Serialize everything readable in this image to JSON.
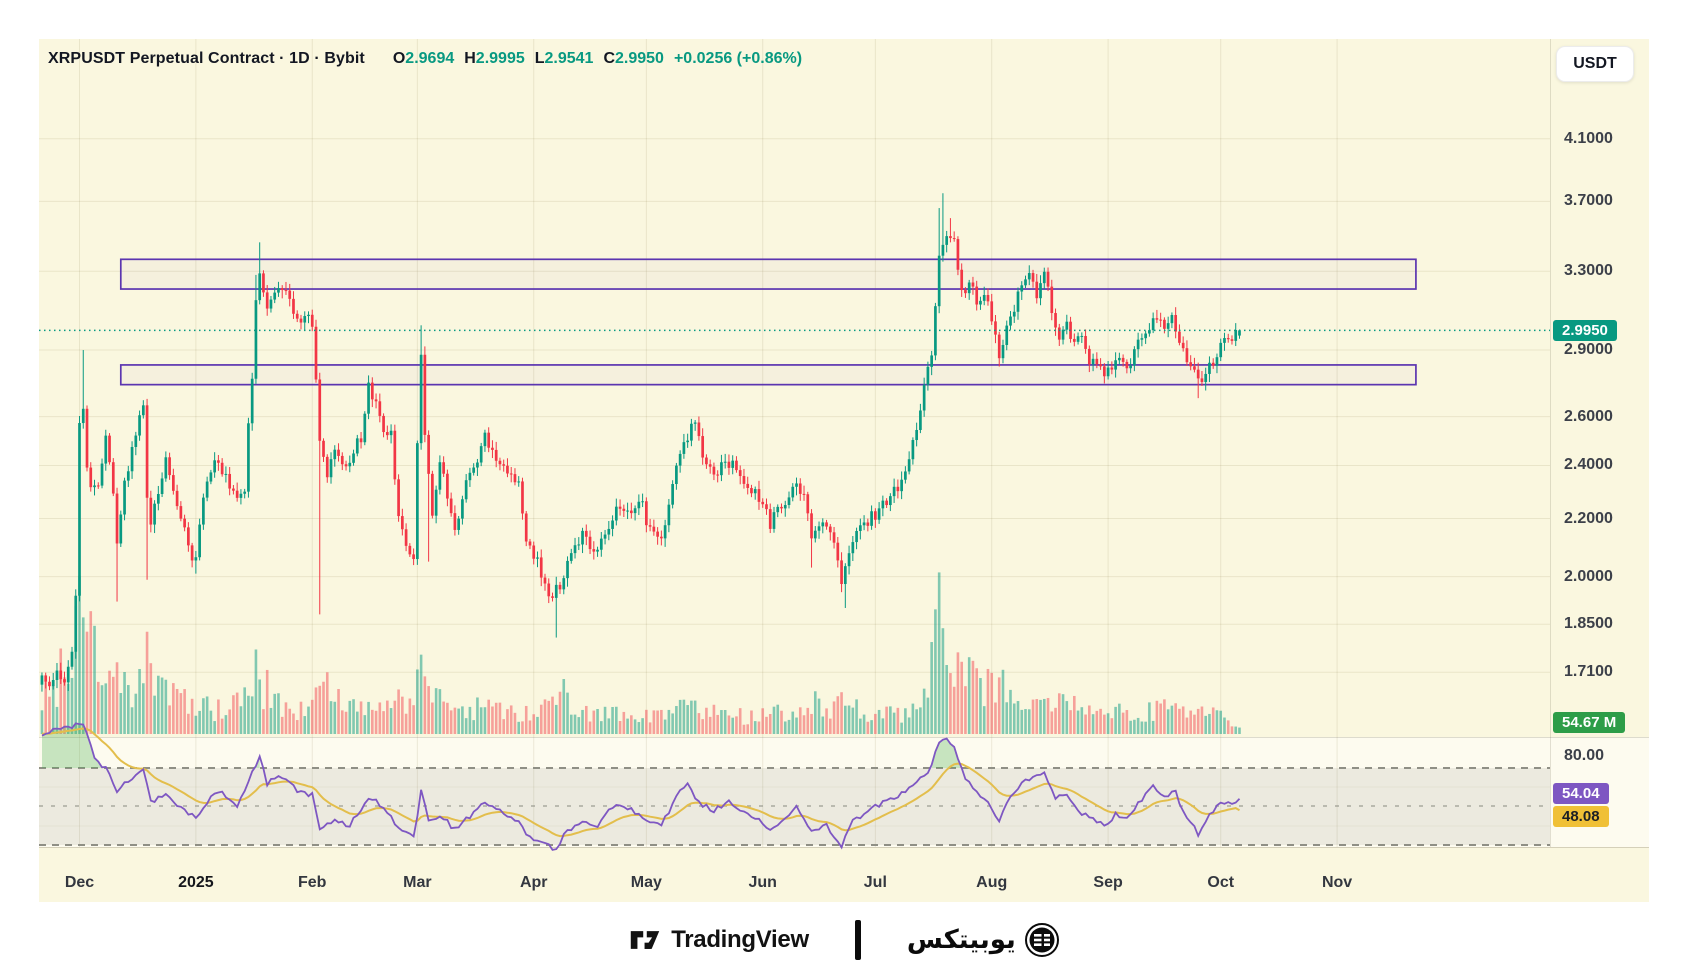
{
  "header": {
    "title": "XRPUSDT Perpetual Contract · 1D · Bybit",
    "ohlc": [
      {
        "label": "O",
        "value": "2.9694"
      },
      {
        "label": "H",
        "value": "2.9995"
      },
      {
        "label": "L",
        "value": "2.9541"
      },
      {
        "label": "C",
        "value": "2.9950"
      }
    ],
    "change": "+0.0256 (+0.86%)",
    "currency_button": "USDT"
  },
  "price_axis": {
    "ticks": [
      "4.1000",
      "3.7000",
      "3.3000",
      "2.9000",
      "2.6000",
      "2.4000",
      "2.2000",
      "2.0000",
      "1.8500",
      "1.7100"
    ],
    "last_price_badge": "2.9950",
    "volume_badge": "54.67 M"
  },
  "rsi_axis": {
    "top_label": "80.00",
    "rsi_badge": "54.04",
    "ma_badge": "48.08"
  },
  "time_axis": {
    "labels": [
      {
        "text": "Dec",
        "day": 10
      },
      {
        "text": "2025",
        "day": 41,
        "bold": true
      },
      {
        "text": "Feb",
        "day": 72
      },
      {
        "text": "Mar",
        "day": 100
      },
      {
        "text": "Apr",
        "day": 131
      },
      {
        "text": "May",
        "day": 161
      },
      {
        "text": "Jun",
        "day": 192
      },
      {
        "text": "Jul",
        "day": 222
      },
      {
        "text": "Aug",
        "day": 253
      },
      {
        "text": "Sep",
        "day": 284
      },
      {
        "text": "Oct",
        "day": 314
      },
      {
        "text": "Nov",
        "day": 345
      }
    ]
  },
  "footer": {
    "tradingview": "TradingView",
    "partner": "يوبيتكس"
  },
  "colors": {
    "up": "#089981",
    "down": "#F23645",
    "vol_up": "rgba(8,153,129,0.50)",
    "vol_down": "rgba(242,54,69,0.45)",
    "accent": "#089981",
    "rsi_purple": "#7E57C2",
    "rsi_ma_yellow": "#E3BE4C",
    "rsi_overbought_fill": "rgba(76,175,80,0.30)",
    "zone_purple": "#5B35B0",
    "zone_fill": "rgba(103,58,183,0.035)",
    "price_badge_bg": "#089981",
    "volume_badge_bg": "#2D9D48",
    "rsi_badge_bg": "#7E57C2",
    "rsi_ma_badge_bg": "#F0C036",
    "grid": "rgba(120,110,55,0.13)",
    "dashed": "#8f8f85",
    "band_fill": "rgba(137,134,124,0.14)",
    "panel_bg": "#FAF7DF"
  },
  "chart_data": {
    "type": "candlestick+volume+rsi",
    "symbol": "XRPUSDT",
    "contract": "Perpetual Contract",
    "interval": "1D",
    "exchange": "Bybit",
    "scale": "logarithmic",
    "start_date": "2024-11-21",
    "end_date": "2025-10-06",
    "num_days": 320,
    "price_ticks": [
      4.1,
      3.7,
      3.3,
      2.9,
      2.6,
      2.4,
      2.2,
      2.0,
      1.85,
      1.71
    ],
    "current_price": 2.995,
    "last_candle": {
      "open": 2.9694,
      "high": 2.9995,
      "low": 2.9541,
      "close": 2.995
    },
    "last_volume_m": 54.67,
    "rsi_last": 54.04,
    "rsi_ma_last": 48.08,
    "rsi_bands": {
      "upper": 70,
      "middle": 50,
      "lower": 30,
      "top_label": 80
    },
    "zones": [
      {
        "name": "supply-zone",
        "price_top": 3.365,
        "price_bottom": 3.205,
        "day_from": 21,
        "day_to": 366
      },
      {
        "name": "demand-zone",
        "price_top": 2.83,
        "price_bottom": 2.74,
        "day_from": 21,
        "day_to": 366
      }
    ],
    "price_anchors": [
      [
        0,
        1.72
      ],
      [
        2,
        1.66
      ],
      [
        4,
        1.7
      ],
      [
        6,
        1.68
      ],
      [
        8,
        1.78
      ],
      [
        9,
        1.95
      ],
      [
        10,
        2.6
      ],
      [
        11,
        2.62
      ],
      [
        12,
        2.4
      ],
      [
        13,
        2.32
      ],
      [
        15,
        2.3
      ],
      [
        17,
        2.52
      ],
      [
        19,
        2.28
      ],
      [
        20,
        2.1
      ],
      [
        22,
        2.35
      ],
      [
        24,
        2.45
      ],
      [
        26,
        2.6
      ],
      [
        27,
        2.67
      ],
      [
        28,
        2.28
      ],
      [
        29,
        2.18
      ],
      [
        31,
        2.3
      ],
      [
        33,
        2.42
      ],
      [
        35,
        2.32
      ],
      [
        37,
        2.22
      ],
      [
        39,
        2.1
      ],
      [
        41,
        2.05
      ],
      [
        43,
        2.28
      ],
      [
        46,
        2.42
      ],
      [
        49,
        2.35
      ],
      [
        52,
        2.28
      ],
      [
        54,
        2.32
      ],
      [
        55,
        2.55
      ],
      [
        56,
        2.78
      ],
      [
        57,
        3.12
      ],
      [
        58,
        3.29
      ],
      [
        60,
        3.08
      ],
      [
        62,
        3.18
      ],
      [
        64,
        3.22
      ],
      [
        66,
        3.12
      ],
      [
        68,
        3.05
      ],
      [
        70,
        3.08
      ],
      [
        72,
        3.04
      ],
      [
        74,
        2.48
      ],
      [
        76,
        2.36
      ],
      [
        78,
        2.46
      ],
      [
        80,
        2.38
      ],
      [
        83,
        2.45
      ],
      [
        85,
        2.52
      ],
      [
        87,
        2.72
      ],
      [
        89,
        2.66
      ],
      [
        91,
        2.55
      ],
      [
        93,
        2.52
      ],
      [
        95,
        2.22
      ],
      [
        97,
        2.12
      ],
      [
        99,
        2.05
      ],
      [
        101,
        2.9
      ],
      [
        102,
        2.52
      ],
      [
        104,
        2.2
      ],
      [
        106,
        2.42
      ],
      [
        108,
        2.28
      ],
      [
        110,
        2.15
      ],
      [
        113,
        2.34
      ],
      [
        116,
        2.42
      ],
      [
        118,
        2.52
      ],
      [
        121,
        2.44
      ],
      [
        124,
        2.38
      ],
      [
        127,
        2.34
      ],
      [
        129,
        2.12
      ],
      [
        132,
        2.05
      ],
      [
        134,
        1.96
      ],
      [
        136,
        1.92
      ],
      [
        137,
        1.96
      ],
      [
        139,
        2.0
      ],
      [
        141,
        2.1
      ],
      [
        144,
        2.14
      ],
      [
        147,
        2.08
      ],
      [
        150,
        2.12
      ],
      [
        153,
        2.26
      ],
      [
        156,
        2.22
      ],
      [
        159,
        2.28
      ],
      [
        161,
        2.2
      ],
      [
        164,
        2.12
      ],
      [
        166,
        2.18
      ],
      [
        169,
        2.38
      ],
      [
        172,
        2.52
      ],
      [
        174,
        2.6
      ],
      [
        176,
        2.42
      ],
      [
        179,
        2.36
      ],
      [
        182,
        2.42
      ],
      [
        185,
        2.38
      ],
      [
        188,
        2.3
      ],
      [
        191,
        2.28
      ],
      [
        194,
        2.18
      ],
      [
        197,
        2.25
      ],
      [
        200,
        2.32
      ],
      [
        203,
        2.28
      ],
      [
        205,
        2.15
      ],
      [
        208,
        2.18
      ],
      [
        211,
        2.12
      ],
      [
        213,
        1.98
      ],
      [
        214,
        2.02
      ],
      [
        216,
        2.12
      ],
      [
        219,
        2.18
      ],
      [
        222,
        2.22
      ],
      [
        225,
        2.27
      ],
      [
        228,
        2.32
      ],
      [
        231,
        2.42
      ],
      [
        233,
        2.55
      ],
      [
        235,
        2.72
      ],
      [
        237,
        2.88
      ],
      [
        239,
        3.42
      ],
      [
        240,
        3.48
      ],
      [
        242,
        3.52
      ],
      [
        243,
        3.45
      ],
      [
        245,
        3.18
      ],
      [
        247,
        3.25
      ],
      [
        249,
        3.12
      ],
      [
        251,
        3.18
      ],
      [
        253,
        3.05
      ],
      [
        255,
        2.85
      ],
      [
        257,
        3.02
      ],
      [
        259,
        3.12
      ],
      [
        261,
        3.22
      ],
      [
        263,
        3.28
      ],
      [
        265,
        3.18
      ],
      [
        267,
        3.32
      ],
      [
        269,
        3.08
      ],
      [
        271,
        2.98
      ],
      [
        273,
        3.02
      ],
      [
        275,
        2.92
      ],
      [
        277,
        2.96
      ],
      [
        279,
        2.86
      ],
      [
        281,
        2.82
      ],
      [
        283,
        2.78
      ],
      [
        285,
        2.82
      ],
      [
        287,
        2.86
      ],
      [
        289,
        2.8
      ],
      [
        291,
        2.88
      ],
      [
        293,
        2.96
      ],
      [
        295,
        3.02
      ],
      [
        297,
        3.08
      ],
      [
        299,
        3.02
      ],
      [
        301,
        3.04
      ],
      [
        303,
        2.96
      ],
      [
        305,
        2.84
      ],
      [
        307,
        2.8
      ],
      [
        308,
        2.74
      ],
      [
        310,
        2.8
      ],
      [
        312,
        2.84
      ],
      [
        314,
        2.92
      ],
      [
        316,
        2.96
      ],
      [
        318,
        2.97
      ],
      [
        319,
        2.995
      ]
    ],
    "wick_events": [
      {
        "d": 11,
        "h": 2.9
      },
      {
        "d": 20,
        "l": 1.92
      },
      {
        "d": 28,
        "l": 1.99
      },
      {
        "d": 41,
        "l": 2.01
      },
      {
        "d": 57,
        "h": 3.28
      },
      {
        "d": 58,
        "h": 3.46
      },
      {
        "d": 74,
        "l": 1.88
      },
      {
        "d": 101,
        "h": 3.02
      },
      {
        "d": 103,
        "l": 2.05
      },
      {
        "d": 137,
        "l": 1.81
      },
      {
        "d": 205,
        "l": 2.03
      },
      {
        "d": 214,
        "l": 1.9
      },
      {
        "d": 239,
        "h": 3.66
      },
      {
        "d": 240,
        "h": 3.75
      },
      {
        "d": 242,
        "h": 3.6
      },
      {
        "d": 308,
        "l": 2.68
      }
    ],
    "volume_anchors_m": [
      [
        0,
        320
      ],
      [
        6,
        520
      ],
      [
        9,
        980
      ],
      [
        10,
        1400
      ],
      [
        11,
        1250
      ],
      [
        13,
        780
      ],
      [
        16,
        420
      ],
      [
        20,
        560
      ],
      [
        24,
        380
      ],
      [
        27,
        460
      ],
      [
        28,
        720
      ],
      [
        31,
        380
      ],
      [
        35,
        300
      ],
      [
        39,
        320
      ],
      [
        41,
        260
      ],
      [
        45,
        220
      ],
      [
        50,
        200
      ],
      [
        55,
        320
      ],
      [
        57,
        520
      ],
      [
        58,
        460
      ],
      [
        60,
        380
      ],
      [
        64,
        260
      ],
      [
        68,
        220
      ],
      [
        72,
        240
      ],
      [
        74,
        640
      ],
      [
        77,
        300
      ],
      [
        80,
        260
      ],
      [
        85,
        240
      ],
      [
        87,
        300
      ],
      [
        91,
        220
      ],
      [
        95,
        280
      ],
      [
        99,
        260
      ],
      [
        101,
        480
      ],
      [
        102,
        420
      ],
      [
        106,
        260
      ],
      [
        110,
        240
      ],
      [
        114,
        200
      ],
      [
        118,
        220
      ],
      [
        123,
        180
      ],
      [
        127,
        170
      ],
      [
        131,
        200
      ],
      [
        134,
        260
      ],
      [
        137,
        440
      ],
      [
        140,
        260
      ],
      [
        144,
        190
      ],
      [
        148,
        160
      ],
      [
        153,
        200
      ],
      [
        158,
        160
      ],
      [
        163,
        170
      ],
      [
        167,
        180
      ],
      [
        172,
        260
      ],
      [
        176,
        200
      ],
      [
        181,
        160
      ],
      [
        186,
        150
      ],
      [
        191,
        140
      ],
      [
        196,
        170
      ],
      [
        200,
        180
      ],
      [
        205,
        260
      ],
      [
        210,
        180
      ],
      [
        214,
        290
      ],
      [
        218,
        190
      ],
      [
        222,
        160
      ],
      [
        227,
        170
      ],
      [
        232,
        200
      ],
      [
        236,
        340
      ],
      [
        239,
        920
      ],
      [
        241,
        820
      ],
      [
        243,
        700
      ],
      [
        246,
        520
      ],
      [
        249,
        420
      ],
      [
        253,
        380
      ],
      [
        255,
        420
      ],
      [
        258,
        300
      ],
      [
        262,
        320
      ],
      [
        265,
        280
      ],
      [
        269,
        300
      ],
      [
        273,
        240
      ],
      [
        277,
        220
      ],
      [
        281,
        200
      ],
      [
        285,
        190
      ],
      [
        289,
        170
      ],
      [
        293,
        200
      ],
      [
        297,
        220
      ],
      [
        301,
        180
      ],
      [
        305,
        230
      ],
      [
        308,
        260
      ],
      [
        311,
        170
      ],
      [
        314,
        150
      ],
      [
        317,
        110
      ],
      [
        319,
        55
      ]
    ],
    "rsi_anchors": [
      [
        0,
        88
      ],
      [
        5,
        90
      ],
      [
        9,
        92
      ],
      [
        11,
        93
      ],
      [
        14,
        75
      ],
      [
        18,
        68
      ],
      [
        20,
        58
      ],
      [
        24,
        65
      ],
      [
        27,
        70
      ],
      [
        29,
        52
      ],
      [
        33,
        56
      ],
      [
        38,
        48
      ],
      [
        41,
        44
      ],
      [
        45,
        55
      ],
      [
        48,
        58
      ],
      [
        52,
        50
      ],
      [
        56,
        68
      ],
      [
        58,
        76
      ],
      [
        60,
        62
      ],
      [
        64,
        66
      ],
      [
        68,
        58
      ],
      [
        72,
        56
      ],
      [
        74,
        38
      ],
      [
        78,
        42
      ],
      [
        82,
        40
      ],
      [
        87,
        55
      ],
      [
        91,
        50
      ],
      [
        95,
        38
      ],
      [
        99,
        34
      ],
      [
        101,
        58
      ],
      [
        103,
        42
      ],
      [
        106,
        46
      ],
      [
        110,
        38
      ],
      [
        114,
        45
      ],
      [
        118,
        52
      ],
      [
        123,
        46
      ],
      [
        127,
        42
      ],
      [
        130,
        34
      ],
      [
        134,
        30
      ],
      [
        137,
        28
      ],
      [
        140,
        38
      ],
      [
        144,
        42
      ],
      [
        148,
        40
      ],
      [
        153,
        52
      ],
      [
        157,
        48
      ],
      [
        161,
        44
      ],
      [
        165,
        40
      ],
      [
        169,
        55
      ],
      [
        172,
        62
      ],
      [
        175,
        52
      ],
      [
        179,
        48
      ],
      [
        183,
        52
      ],
      [
        187,
        47
      ],
      [
        191,
        44
      ],
      [
        194,
        38
      ],
      [
        198,
        44
      ],
      [
        201,
        50
      ],
      [
        205,
        38
      ],
      [
        209,
        40
      ],
      [
        213,
        30
      ],
      [
        216,
        42
      ],
      [
        220,
        48
      ],
      [
        224,
        52
      ],
      [
        228,
        55
      ],
      [
        232,
        60
      ],
      [
        236,
        68
      ],
      [
        239,
        82
      ],
      [
        241,
        86
      ],
      [
        243,
        80
      ],
      [
        246,
        65
      ],
      [
        249,
        58
      ],
      [
        252,
        52
      ],
      [
        255,
        42
      ],
      [
        258,
        55
      ],
      [
        261,
        62
      ],
      [
        264,
        66
      ],
      [
        267,
        68
      ],
      [
        270,
        54
      ],
      [
        273,
        56
      ],
      [
        276,
        48
      ],
      [
        279,
        44
      ],
      [
        283,
        40
      ],
      [
        286,
        46
      ],
      [
        289,
        44
      ],
      [
        293,
        54
      ],
      [
        296,
        60
      ],
      [
        299,
        56
      ],
      [
        302,
        57
      ],
      [
        305,
        44
      ],
      [
        308,
        36
      ],
      [
        311,
        45
      ],
      [
        314,
        52
      ],
      [
        317,
        52
      ],
      [
        319,
        54.04
      ]
    ]
  }
}
